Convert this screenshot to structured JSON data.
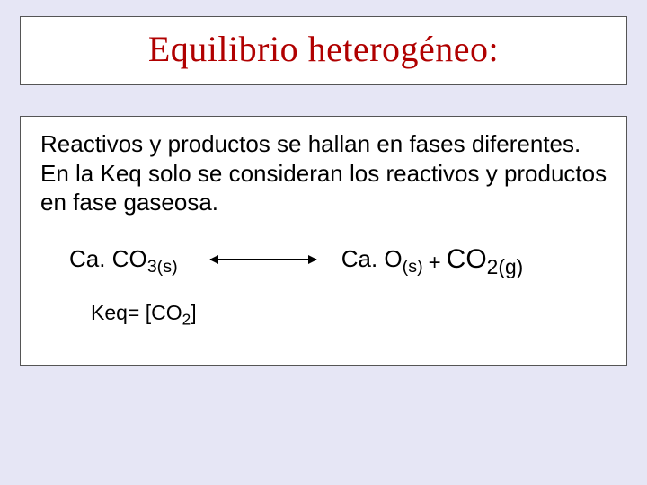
{
  "title": "Equilibrio heterogéneo:",
  "body_line1": "Reactivos y productos se hallan en  fases diferentes.",
  "body_line2": "En la Keq solo se consideran los reactivos y productos en fase gaseosa.",
  "equation": {
    "reactant": {
      "formula": "Ca. CO",
      "sub": "3(s)"
    },
    "product1": {
      "formula": "Ca. O",
      "sub": "(s)"
    },
    "plus": "+",
    "product2": {
      "formula": "CO",
      "sub": "2(g)"
    }
  },
  "keq": {
    "prefix": "Keq=   [CO",
    "sub": "2",
    "suffix": "]"
  },
  "colors": {
    "page_bg": "#e6e6f5",
    "box_bg": "#ffffff",
    "border": "#555555",
    "title": "#b00000",
    "text": "#000000"
  }
}
